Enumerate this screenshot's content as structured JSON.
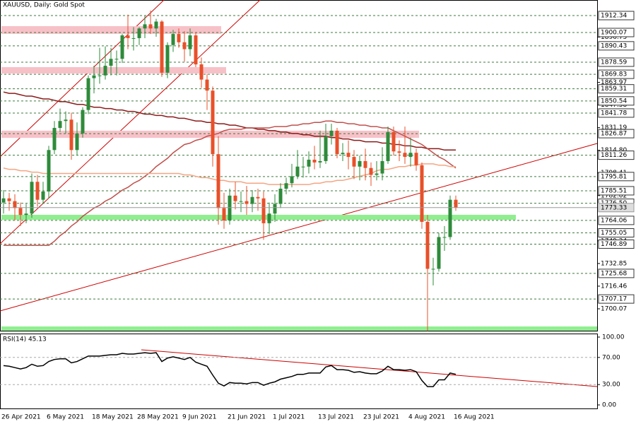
{
  "chart_data": [
    {
      "type": "candlestick",
      "title": "XAUUSD, Daily:  Gold Spot",
      "categories": [
        "26 Apr 2021",
        null,
        null,
        null,
        null,
        null,
        null,
        null,
        "6 May 2021",
        null,
        null,
        null,
        null,
        null,
        null,
        null,
        "18 May 2021",
        null,
        null,
        null,
        null,
        null,
        null,
        null,
        "28 May 2021",
        null,
        null,
        null,
        null,
        null,
        null,
        null,
        "9 Jun 2021",
        null,
        null,
        null,
        null,
        null,
        null,
        null,
        "21 Jun 2021",
        null,
        null,
        null,
        null,
        null,
        null,
        null,
        "1 Jul 2021",
        null,
        null,
        null,
        null,
        null,
        null,
        null,
        "13 Jul 2021",
        null,
        null,
        null,
        null,
        null,
        null,
        null,
        "23 Jul 2021",
        null,
        null,
        null,
        null,
        null,
        null,
        null,
        "4 Aug 2021",
        null,
        null,
        null,
        null,
        null,
        null,
        null,
        "16 Aug 2021"
      ],
      "open": [
        1777,
        1780,
        1778,
        1773,
        1768,
        1769,
        1792,
        1779,
        1785,
        1815,
        1831,
        1836,
        1837,
        1815,
        1827,
        1844,
        1867,
        1869,
        1869,
        1876,
        1881,
        1881,
        1898,
        1896,
        1896,
        1903,
        1906,
        1903,
        1908,
        1871,
        1891,
        1899,
        1893,
        1888,
        1898,
        1877,
        1866,
        1858,
        1812,
        1773,
        1764,
        1782,
        1778,
        1778,
        1776,
        1781,
        1780,
        1762,
        1769,
        1776,
        1787,
        1791,
        1796,
        1803,
        1803,
        1808,
        1806,
        1807,
        1825,
        1829,
        1812,
        1813,
        1810,
        1803,
        1807,
        1802,
        1797,
        1798,
        1807,
        1828,
        1814,
        1813,
        1810,
        1813,
        1804,
        1763,
        1729,
        1729,
        1752,
        1752,
        1779
      ],
      "high": [
        1786,
        1784,
        1783,
        1777,
        1776,
        1798,
        1797,
        1792,
        1818,
        1836,
        1845,
        1843,
        1842,
        1835,
        1846,
        1869,
        1876,
        1889,
        1890,
        1889,
        1887,
        1899,
        1913,
        1904,
        1904,
        1912,
        1916,
        1910,
        1909,
        1893,
        1902,
        1903,
        1901,
        1903,
        1900,
        1882,
        1870,
        1861,
        1825,
        1784,
        1787,
        1792,
        1785,
        1789,
        1786,
        1787,
        1785,
        1777,
        1783,
        1791,
        1795,
        1805,
        1815,
        1810,
        1814,
        1818,
        1829,
        1834,
        1834,
        1831,
        1820,
        1822,
        1815,
        1811,
        1816,
        1806,
        1807,
        1817,
        1832,
        1832,
        1822,
        1832,
        1824,
        1816,
        1806,
        1768,
        1737,
        1755,
        1760,
        1782,
        1782
      ],
      "low": [
        1769,
        1771,
        1764,
        1760,
        1762,
        1766,
        1774,
        1776,
        1780,
        1812,
        1828,
        1827,
        1808,
        1811,
        1824,
        1841,
        1856,
        1863,
        1866,
        1869,
        1869,
        1878,
        1888,
        1887,
        1891,
        1896,
        1899,
        1897,
        1868,
        1867,
        1886,
        1889,
        1879,
        1883,
        1875,
        1860,
        1844,
        1803,
        1761,
        1758,
        1761,
        1772,
        1770,
        1768,
        1770,
        1771,
        1750,
        1754,
        1763,
        1773,
        1783,
        1788,
        1794,
        1795,
        1798,
        1801,
        1802,
        1805,
        1819,
        1809,
        1807,
        1801,
        1794,
        1793,
        1793,
        1789,
        1793,
        1793,
        1805,
        1811,
        1807,
        1805,
        1803,
        1800,
        1758,
        1684,
        1717,
        1727,
        1742,
        1750,
        1771
      ],
      "close": [
        1780,
        1778,
        1773,
        1768,
        1769,
        1792,
        1779,
        1785,
        1815,
        1831,
        1836,
        1837,
        1815,
        1827,
        1844,
        1867,
        1869,
        1869,
        1876,
        1881,
        1881,
        1898,
        1896,
        1896,
        1903,
        1906,
        1903,
        1908,
        1871,
        1891,
        1899,
        1893,
        1888,
        1898,
        1877,
        1866,
        1858,
        1812,
        1773,
        1764,
        1782,
        1778,
        1778,
        1776,
        1781,
        1780,
        1762,
        1769,
        1776,
        1787,
        1791,
        1796,
        1803,
        1803,
        1808,
        1806,
        1807,
        1825,
        1829,
        1812,
        1813,
        1810,
        1803,
        1807,
        1802,
        1797,
        1798,
        1807,
        1828,
        1814,
        1813,
        1810,
        1813,
        1804,
        1763,
        1729,
        1729,
        1752,
        1752,
        1779,
        1773.33
      ],
      "up_color": "#2e8b3a",
      "down_color": "#e8502a",
      "series": [
        {
          "color": "#8b1a1a",
          "values": [
            1857,
            1856,
            1856,
            1855,
            1854,
            1854,
            1853,
            1852,
            1852,
            1851,
            1850,
            1850,
            1849,
            1848,
            1848,
            1847,
            1846,
            1846,
            1845,
            1845,
            1844,
            1844,
            1843,
            1843,
            1842,
            1841,
            1841,
            1840,
            1840,
            1839,
            1839,
            1838,
            1838,
            1837,
            1836,
            1836,
            1835,
            1835,
            1834,
            1834,
            1833,
            1833,
            1832,
            1831,
            1831,
            1830,
            1830,
            1829,
            1829,
            1828,
            1828,
            1827,
            1827,
            1826,
            1826,
            1825,
            1825,
            1825,
            1824,
            1824,
            1823,
            1823,
            1822,
            1822,
            1821,
            1821,
            1821,
            1820,
            1820,
            1819,
            1819,
            1818,
            1818,
            1817,
            1817,
            1816,
            1816,
            1816,
            1815,
            1815,
            1815
          ]
        },
        {
          "color": "#c0504d",
          "values": [
            1746,
            1746,
            1746,
            1746,
            1746,
            1746,
            1746,
            1746,
            1746,
            1749,
            1753,
            1756,
            1760,
            1763,
            1767,
            1770,
            1773,
            1775,
            1778,
            1780,
            1783,
            1786,
            1788,
            1791,
            1793,
            1796,
            1799,
            1803,
            1806,
            1809,
            1813,
            1816,
            1819,
            1820,
            1822,
            1823,
            1825,
            1826,
            1827,
            1829,
            1830,
            1830,
            1830,
            1831,
            1831,
            1831,
            1831,
            1831,
            1832,
            1832,
            1832,
            1833,
            1833,
            1834,
            1834,
            1835,
            1835,
            1836,
            1836,
            1835,
            1835,
            1834,
            1834,
            1833,
            1833,
            1832,
            1832,
            1831,
            1831,
            1829,
            1827,
            1825,
            1823,
            1821,
            1819,
            1816,
            1813,
            1810,
            1808,
            1805,
            1802
          ]
        },
        {
          "color": "#f4a582",
          "values": [
            1802,
            1801,
            1801,
            1800,
            1800,
            1799,
            1799,
            1798,
            1798,
            1798,
            1798,
            1798,
            1798,
            1798,
            1798,
            1798,
            1798,
            1798,
            1798,
            1798,
            1798,
            1798,
            1798,
            1798,
            1798,
            1798,
            1798,
            1798,
            1798,
            1798,
            1798,
            1798,
            1797,
            1797,
            1796,
            1795,
            1795,
            1794,
            1793,
            1793,
            1792,
            1792,
            1792,
            1791,
            1791,
            1791,
            1791,
            1790,
            1790,
            1790,
            1790,
            1790,
            1790,
            1790,
            1790,
            1791,
            1791,
            1792,
            1792,
            1793,
            1793,
            1794,
            1795,
            1796,
            1797,
            1798,
            1800,
            1801,
            1801,
            1802,
            1803,
            1803,
            1804,
            1804,
            1805,
            1805,
            1805,
            1804,
            1804,
            1803,
            1803
          ]
        }
      ],
      "zones": [
        {
          "range": [
            1899.1,
            1904.7
          ],
          "color": "#f7c1c8"
        },
        {
          "range": [
            1870.4,
            1875.0
          ],
          "color": "#f7c1c8"
        },
        {
          "range": [
            1823.8,
            1829.0
          ],
          "color": "#f7c1c8"
        },
        {
          "range": [
            1764.5,
            1768.1
          ],
          "color": "#90ee90"
        },
        {
          "range": [
            1684.2,
            1687.3
          ],
          "color": "#90ee90"
        }
      ],
      "levels": [
        1912.34,
        1900.07,
        1890.43,
        1878.59,
        1869.83,
        1859.31,
        1850.54,
        1841.78,
        1826.87,
        1811.26,
        1795.81,
        1785.51,
        {
          "value": 1776.5,
          "label": "1776.50"
        },
        1764.06,
        1755.05,
        1746.89,
        1725.68,
        1707.17
      ],
      "level_color": "#3c7a3c",
      "ylim": [
        1684.2,
        1923.6
      ],
      "yticks": [
        {
          "value": 1896.75,
          "label": "1896.75"
        },
        1863.97,
        1847.58,
        1831.19,
        {
          "value": 1814.8,
          "label": "1814.80"
        },
        1798.41,
        1782.02,
        1749.24,
        1732.85,
        1716.46,
        1700.07
      ]
    },
    {
      "type": "line",
      "title": "RSI(14) 45.13",
      "color": "#000000",
      "values": [
        58,
        57,
        55,
        53,
        55,
        60,
        57,
        58,
        64,
        67,
        68,
        68,
        62,
        64,
        68,
        72,
        72,
        72,
        73,
        74,
        74,
        76,
        75,
        75,
        76,
        77,
        76,
        77,
        64,
        69,
        71,
        69,
        67,
        70,
        63,
        60,
        57,
        44,
        32,
        28,
        33,
        32,
        32,
        31,
        33,
        33,
        29,
        32,
        34,
        38,
        40,
        42,
        45,
        45,
        47,
        47,
        47,
        56,
        58,
        52,
        52,
        51,
        48,
        49,
        47,
        46,
        46,
        50,
        57,
        52,
        52,
        51,
        52,
        49,
        36,
        27,
        27,
        37,
        37,
        47,
        45.13
      ],
      "ylim": [
        -5.2,
        105.2
      ],
      "yticks": [
        {
          "value": 100,
          "label": "100.00"
        },
        {
          "value": 70,
          "label": "70.00"
        },
        {
          "value": 30,
          "label": "30.00"
        },
        {
          "value": 0,
          "label": "0.00"
        }
      ],
      "dashed": [
        {
          "value": 70,
          "label": "70.00"
        },
        {
          "value": 30,
          "label": "30.00"
        }
      ]
    }
  ]
}
